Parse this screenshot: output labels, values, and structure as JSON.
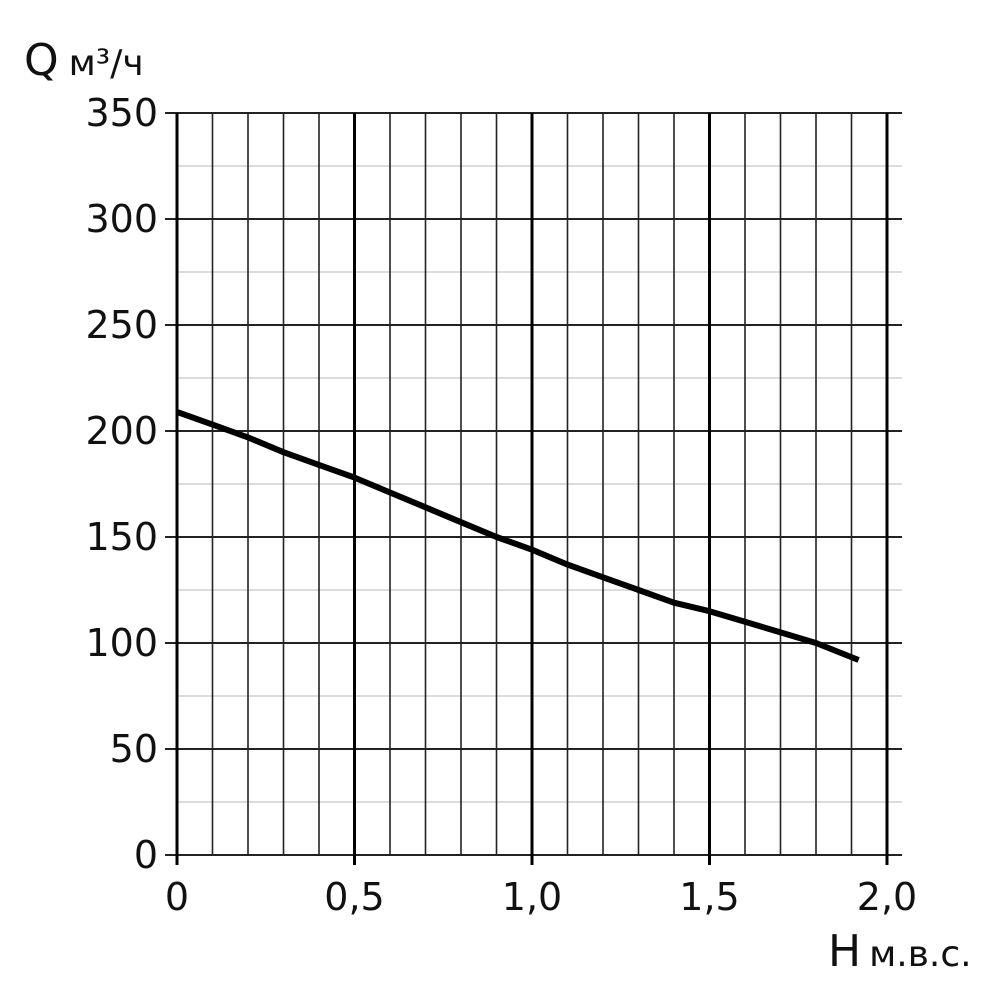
{
  "chart_data": {
    "type": "line",
    "title": "",
    "ylabel_symbol": "Q",
    "ylabel_unit": "м³/ч",
    "xlabel_symbol": "H",
    "xlabel_unit": "м.в.с.",
    "xlim": [
      0,
      2.0
    ],
    "ylim": [
      0,
      350
    ],
    "x_ticks": [
      0,
      0.5,
      1.0,
      1.5,
      2.0
    ],
    "x_tick_labels": [
      "0",
      "0,5",
      "1,0",
      "1,5",
      "2,0"
    ],
    "y_ticks": [
      0,
      50,
      100,
      150,
      200,
      250,
      300,
      350
    ],
    "y_tick_labels": [
      "0",
      "50",
      "100",
      "150",
      "200",
      "250",
      "300",
      "350"
    ],
    "x_minor_step": 0.1,
    "y_minor_step": 25,
    "grid": true,
    "series": [
      {
        "x": [
          0,
          0.1,
          0.2,
          0.3,
          0.4,
          0.5,
          0.6,
          0.7,
          0.8,
          0.9,
          1.0,
          1.1,
          1.2,
          1.3,
          1.4,
          1.5,
          1.6,
          1.7,
          1.8,
          1.92
        ],
        "values": [
          209,
          203,
          197,
          190,
          184,
          178,
          171,
          164,
          157,
          150,
          144,
          137,
          131,
          125,
          119,
          115,
          110,
          105,
          100,
          92
        ],
        "color": "#000000"
      }
    ]
  }
}
